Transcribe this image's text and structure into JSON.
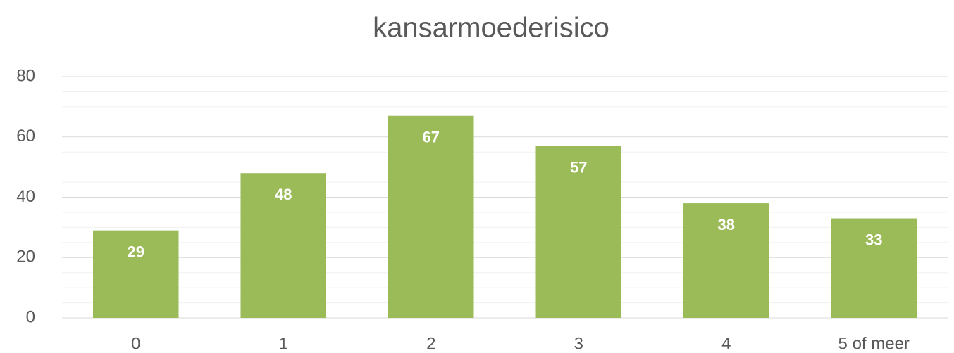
{
  "chart_data": {
    "type": "bar",
    "title": "kansarmoederisico",
    "categories": [
      "0",
      "1",
      "2",
      "3",
      "4",
      "5 of meer"
    ],
    "values": [
      29,
      48,
      67,
      57,
      38,
      33
    ],
    "color": "#9bbb59",
    "ylim": [
      0,
      80
    ],
    "yticks": [
      0,
      20,
      40,
      60,
      80
    ],
    "yminorticks": [
      5,
      10,
      15,
      25,
      30,
      35,
      45,
      50,
      55,
      65,
      70,
      75
    ],
    "grid": true,
    "data_labels": true
  }
}
